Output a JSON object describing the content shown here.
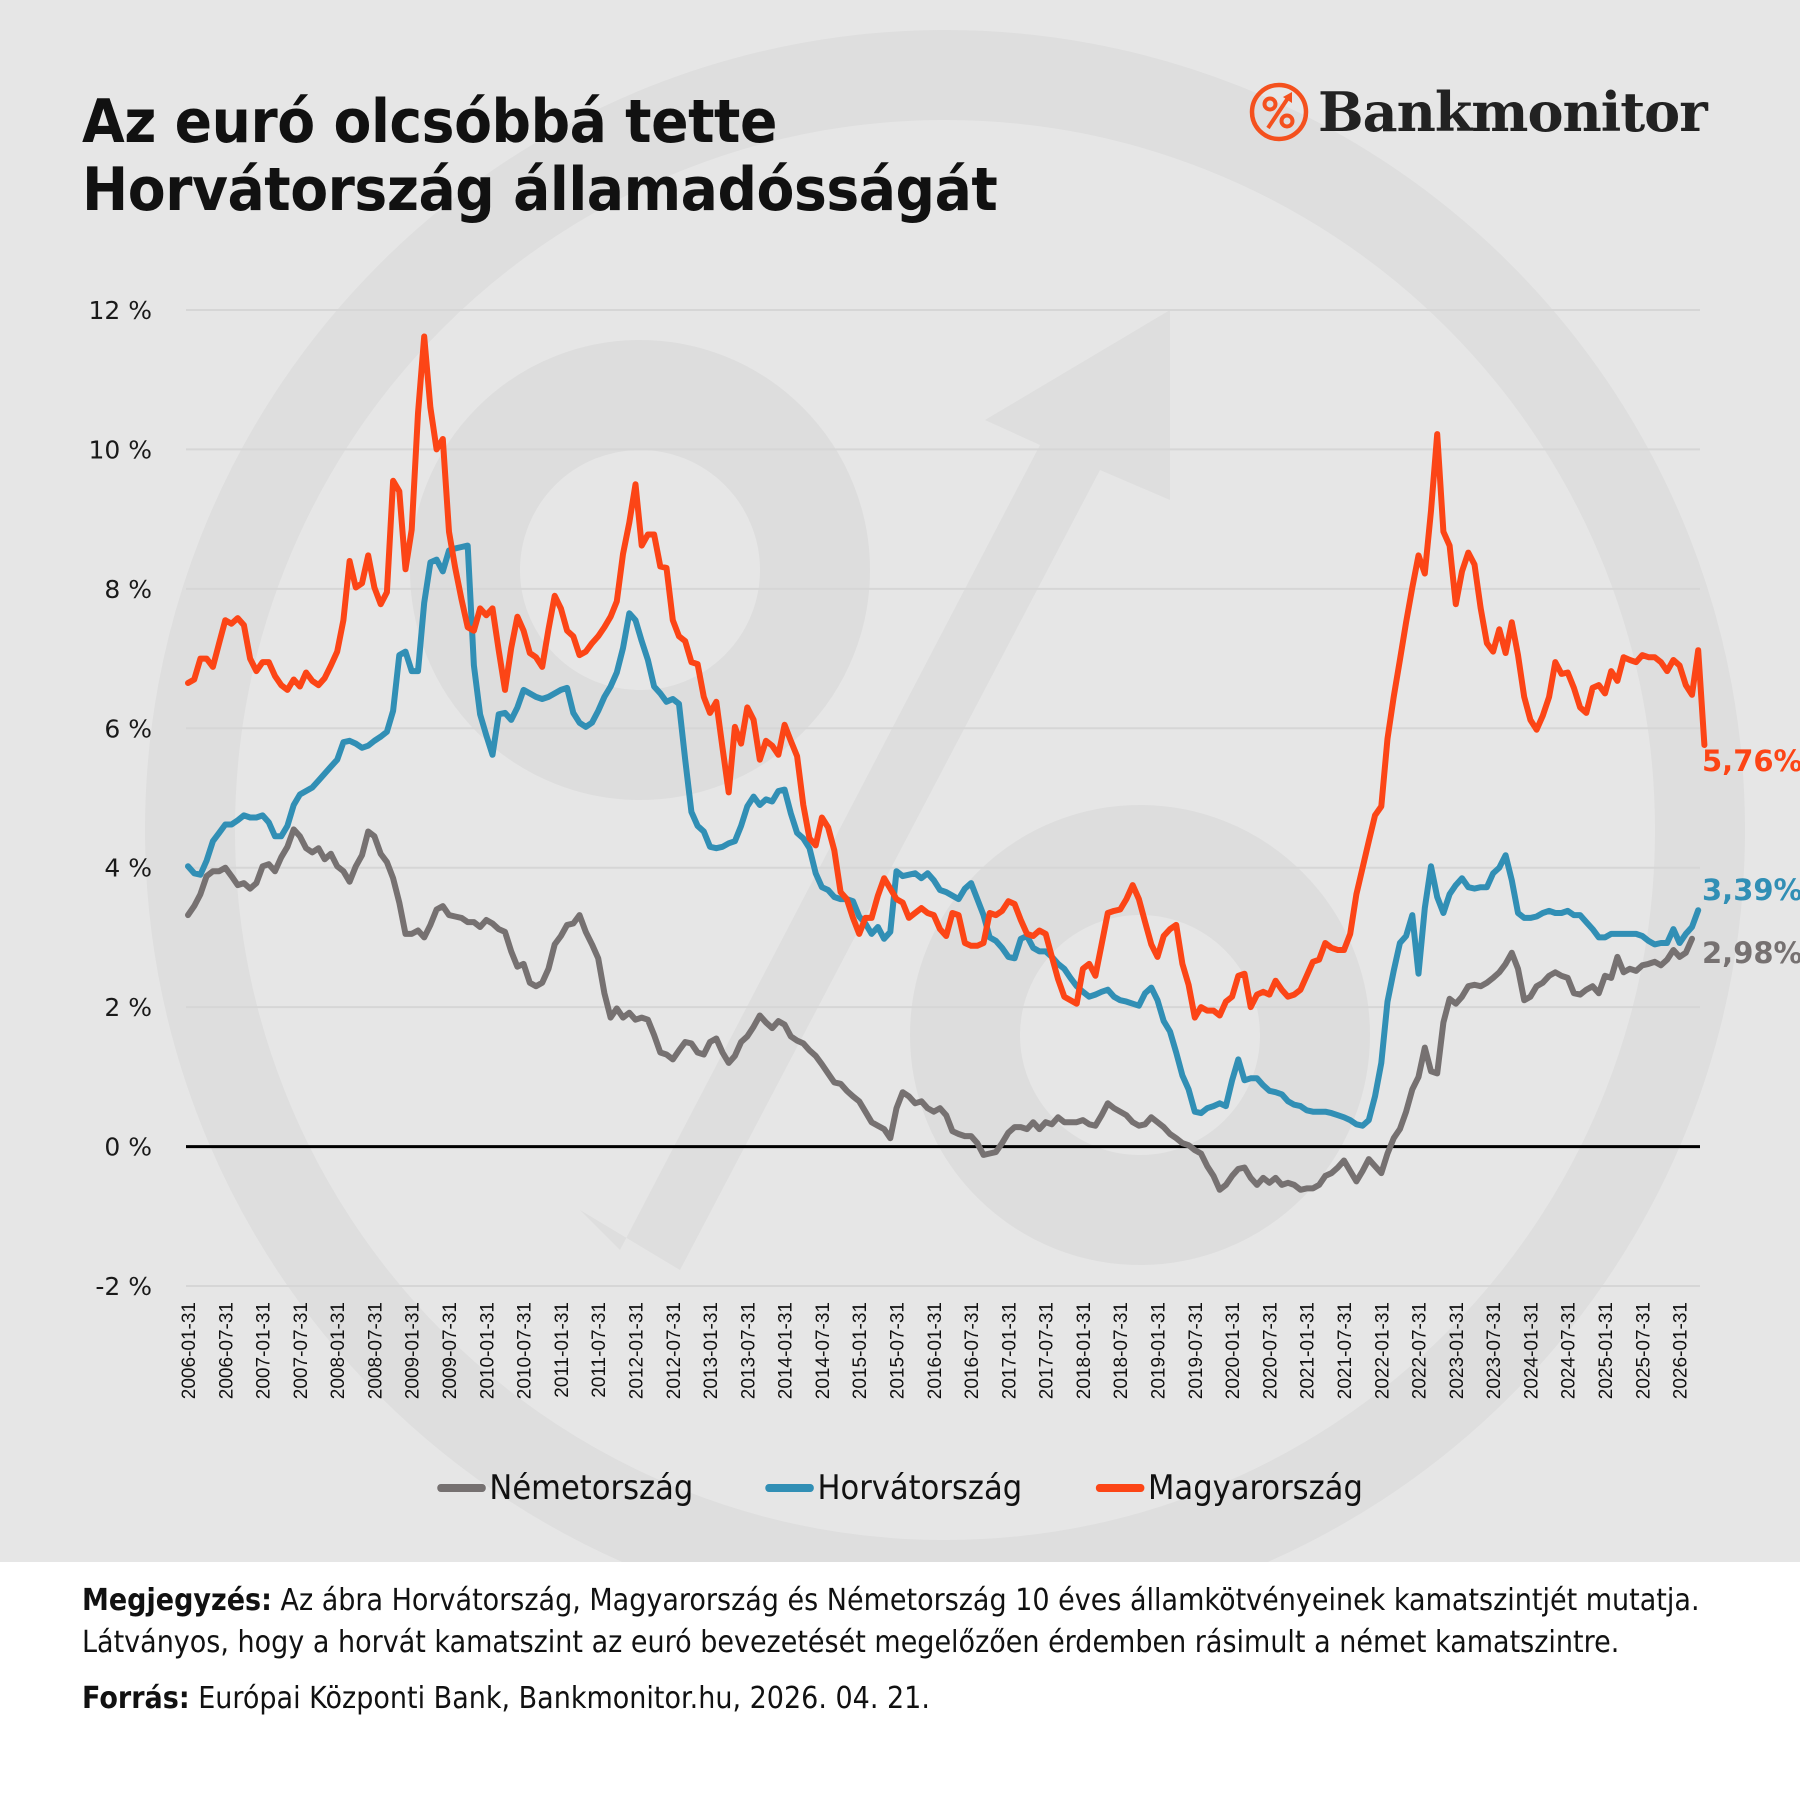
{
  "title": {
    "line1": "Az euró olcsóbbá tette",
    "line2": "Horvátország államadósságát"
  },
  "brand": {
    "name": "Bankmonitor",
    "icon": "percent-arrow-circle-icon",
    "color": "#f4511e"
  },
  "legend": [
    {
      "label": "Németország",
      "color": "#767171"
    },
    {
      "label": "Horvátország",
      "color": "#318fb5"
    },
    {
      "label": "Magyarország",
      "color": "#fc4516"
    }
  ],
  "notes": {
    "note_label": "Megjegyzés:",
    "note_text": "Az ábra Horvátország, Magyarország és Németország 10 éves államkötvényeinek kamatszintjét mutatja. Látványos, hogy a horvát kamatszint az euró bevezetését megelőzően érdemben rásimult a német kamatszintre.",
    "source_label": "Forrás:",
    "source_text": "Európai Központi Bank, Bankmonitor.hu, 2026. 04. 21."
  },
  "chart_data": {
    "type": "line",
    "title": "Az euró olcsóbbá tette Horvátország államadósságát",
    "xlabel": "",
    "ylabel": "",
    "frequency": "monthly",
    "x_start": "2006-01-31",
    "x_end": "2026-03-31",
    "ylim": [
      -2,
      12
    ],
    "yticks": [
      -2,
      0,
      2,
      4,
      6,
      8,
      10,
      12
    ],
    "ytick_labels": [
      "-2 %",
      "0 %",
      "2 %",
      "4 %",
      "6 %",
      "8 %",
      "10 %",
      "12 %"
    ],
    "xtick_labels": [
      "2006-01-31",
      "2006-07-31",
      "2007-01-31",
      "2007-07-31",
      "2008-01-31",
      "2008-07-31",
      "2009-01-31",
      "2009-07-31",
      "2010-01-31",
      "2010-07-31",
      "2011-01-31",
      "2011-07-31",
      "2012-01-31",
      "2012-07-31",
      "2013-01-31",
      "2013-07-31",
      "2014-01-31",
      "2014-07-31",
      "2015-01-31",
      "2015-07-31",
      "2016-01-31",
      "2016-07-31",
      "2017-01-31",
      "2017-07-31",
      "2018-01-31",
      "2018-07-31",
      "2019-01-31",
      "2019-07-31",
      "2020-01-31",
      "2020-07-31",
      "2021-01-31",
      "2021-07-31",
      "2022-01-31",
      "2022-07-31",
      "2023-01-31",
      "2023-07-31",
      "2024-01-31",
      "2024-07-31",
      "2025-01-31",
      "2025-07-31",
      "2026-01-31"
    ],
    "grid": true,
    "zero_line": true,
    "legend_position": "bottom",
    "series": [
      {
        "name": "Németország",
        "color": "#767171",
        "end_label": "2,98%",
        "values": [
          3.32,
          3.45,
          3.62,
          3.88,
          3.95,
          3.95,
          4.0,
          3.88,
          3.75,
          3.78,
          3.7,
          3.78,
          4.02,
          4.05,
          3.95,
          4.15,
          4.3,
          4.55,
          4.45,
          4.28,
          4.22,
          4.28,
          4.12,
          4.2,
          4.02,
          3.95,
          3.8,
          4.02,
          4.18,
          4.52,
          4.45,
          4.2,
          4.08,
          3.85,
          3.5,
          3.05,
          3.05,
          3.1,
          3.0,
          3.18,
          3.4,
          3.45,
          3.32,
          3.3,
          3.28,
          3.22,
          3.22,
          3.15,
          3.25,
          3.2,
          3.12,
          3.08,
          2.8,
          2.58,
          2.62,
          2.35,
          2.3,
          2.35,
          2.55,
          2.9,
          3.02,
          3.18,
          3.2,
          3.32,
          3.08,
          2.9,
          2.7,
          2.2,
          1.85,
          1.98,
          1.85,
          1.92,
          1.82,
          1.85,
          1.82,
          1.6,
          1.35,
          1.32,
          1.25,
          1.38,
          1.5,
          1.48,
          1.35,
          1.32,
          1.5,
          1.55,
          1.35,
          1.2,
          1.3,
          1.5,
          1.58,
          1.72,
          1.88,
          1.78,
          1.7,
          1.8,
          1.75,
          1.58,
          1.52,
          1.48,
          1.38,
          1.3,
          1.18,
          1.05,
          0.92,
          0.9,
          0.8,
          0.72,
          0.65,
          0.5,
          0.35,
          0.3,
          0.25,
          0.12,
          0.55,
          0.78,
          0.72,
          0.62,
          0.65,
          0.55,
          0.5,
          0.55,
          0.45,
          0.22,
          0.18,
          0.15,
          0.15,
          0.05,
          -0.12,
          -0.1,
          -0.08,
          0.05,
          0.2,
          0.28,
          0.28,
          0.25,
          0.35,
          0.25,
          0.35,
          0.32,
          0.42,
          0.35,
          0.35,
          0.35,
          0.38,
          0.32,
          0.3,
          0.45,
          0.62,
          0.55,
          0.5,
          0.45,
          0.35,
          0.3,
          0.32,
          0.42,
          0.35,
          0.28,
          0.18,
          0.12,
          0.05,
          0.02,
          -0.05,
          -0.1,
          -0.28,
          -0.42,
          -0.62,
          -0.55,
          -0.42,
          -0.32,
          -0.3,
          -0.45,
          -0.55,
          -0.45,
          -0.52,
          -0.45,
          -0.55,
          -0.52,
          -0.55,
          -0.62,
          -0.6,
          -0.6,
          -0.55,
          -0.42,
          -0.38,
          -0.3,
          -0.2,
          -0.35,
          -0.5,
          -0.35,
          -0.18,
          -0.28,
          -0.38,
          -0.1,
          0.12,
          0.25,
          0.5,
          0.82,
          1.0,
          1.42,
          1.08,
          1.05,
          1.78,
          2.12,
          2.05,
          2.15,
          2.3,
          2.32,
          2.3,
          2.35,
          2.42,
          2.5,
          2.62,
          2.78,
          2.55,
          2.1,
          2.15,
          2.3,
          2.35,
          2.45,
          2.5,
          2.45,
          2.42,
          2.2,
          2.18,
          2.25,
          2.3,
          2.2,
          2.45,
          2.42,
          2.72,
          2.5,
          2.55,
          2.52,
          2.6,
          2.62,
          2.65,
          2.6,
          2.68,
          2.82,
          2.72,
          2.78,
          2.98
        ]
      },
      {
        "name": "Horvátország",
        "color": "#318fb5",
        "end_label": "3,39%",
        "values": [
          4.02,
          3.92,
          3.9,
          4.1,
          4.38,
          4.5,
          4.62,
          4.62,
          4.68,
          4.75,
          4.72,
          4.72,
          4.75,
          4.65,
          4.45,
          4.45,
          4.6,
          4.9,
          5.05,
          5.1,
          5.15,
          5.25,
          5.35,
          5.45,
          5.55,
          5.8,
          5.82,
          5.78,
          5.72,
          5.75,
          5.82,
          5.88,
          5.95,
          6.25,
          7.05,
          7.1,
          6.82,
          6.82,
          7.8,
          8.38,
          8.42,
          8.25,
          8.55,
          8.58,
          8.6,
          8.62,
          6.9,
          6.2,
          5.9,
          5.62,
          6.2,
          6.22,
          6.12,
          6.3,
          6.55,
          6.5,
          6.45,
          6.42,
          6.45,
          6.5,
          6.55,
          6.58,
          6.22,
          6.08,
          6.02,
          6.08,
          6.25,
          6.45,
          6.6,
          6.8,
          7.15,
          7.65,
          7.55,
          7.25,
          6.98,
          6.6,
          6.5,
          6.38,
          6.42,
          6.35,
          5.55,
          4.8,
          4.6,
          4.52,
          4.3,
          4.28,
          4.3,
          4.35,
          4.38,
          4.6,
          4.88,
          5.02,
          4.9,
          4.98,
          4.95,
          5.1,
          5.12,
          4.78,
          4.5,
          4.42,
          4.28,
          3.92,
          3.72,
          3.68,
          3.58,
          3.55,
          3.55,
          3.52,
          3.3,
          3.2,
          3.05,
          3.15,
          2.98,
          3.08,
          3.95,
          3.88,
          3.9,
          3.92,
          3.85,
          3.92,
          3.82,
          3.68,
          3.65,
          3.6,
          3.55,
          3.7,
          3.78,
          3.55,
          3.32,
          3.0,
          2.95,
          2.85,
          2.72,
          2.7,
          2.98,
          3.02,
          2.85,
          2.8,
          2.8,
          2.72,
          2.62,
          2.55,
          2.42,
          2.3,
          2.22,
          2.15,
          2.18,
          2.22,
          2.25,
          2.15,
          2.1,
          2.08,
          2.05,
          2.02,
          2.2,
          2.28,
          2.1,
          1.8,
          1.65,
          1.35,
          1.02,
          0.82,
          0.5,
          0.48,
          0.55,
          0.58,
          0.62,
          0.58,
          0.95,
          1.25,
          0.95,
          0.98,
          0.98,
          0.88,
          0.8,
          0.78,
          0.75,
          0.65,
          0.6,
          0.58,
          0.52,
          0.5,
          0.5,
          0.5,
          0.48,
          0.45,
          0.42,
          0.38,
          0.32,
          0.3,
          0.38,
          0.72,
          1.2,
          2.08,
          2.52,
          2.92,
          3.02,
          3.32,
          2.48,
          3.42,
          4.02,
          3.58,
          3.35,
          3.62,
          3.75,
          3.85,
          3.72,
          3.7,
          3.72,
          3.72,
          3.92,
          4.0,
          4.18,
          3.82,
          3.35,
          3.28,
          3.28,
          3.3,
          3.35,
          3.38,
          3.35,
          3.35,
          3.38,
          3.32,
          3.32,
          3.22,
          3.12,
          3.0,
          3.0,
          3.05,
          3.05,
          3.05,
          3.05,
          3.05,
          3.02,
          2.95,
          2.9,
          2.92,
          2.92,
          3.12,
          2.92,
          3.05,
          3.15,
          3.39
        ]
      },
      {
        "name": "Magyarország",
        "color": "#fc4516",
        "end_label": "5,76%",
        "values": [
          6.65,
          6.7,
          7.0,
          7.0,
          6.88,
          7.22,
          7.55,
          7.5,
          7.58,
          7.48,
          7.0,
          6.82,
          6.95,
          6.95,
          6.75,
          6.62,
          6.55,
          6.7,
          6.6,
          6.8,
          6.68,
          6.62,
          6.72,
          6.9,
          7.1,
          7.55,
          8.4,
          8.02,
          8.08,
          8.48,
          8.02,
          7.78,
          7.95,
          9.55,
          9.4,
          8.28,
          8.85,
          10.52,
          11.62,
          10.6,
          10.0,
          10.15,
          8.82,
          8.3,
          7.85,
          7.45,
          7.4,
          7.72,
          7.62,
          7.72,
          7.12,
          6.55,
          7.15,
          7.6,
          7.4,
          7.08,
          7.02,
          6.88,
          7.42,
          7.9,
          7.72,
          7.4,
          7.32,
          7.05,
          7.1,
          7.22,
          7.32,
          7.45,
          7.6,
          7.82,
          8.5,
          8.95,
          9.5,
          8.62,
          8.78,
          8.78,
          8.32,
          8.3,
          7.55,
          7.32,
          7.25,
          6.95,
          6.92,
          6.45,
          6.22,
          6.38,
          5.72,
          5.08,
          6.02,
          5.78,
          6.3,
          6.12,
          5.55,
          5.82,
          5.75,
          5.62,
          6.05,
          5.82,
          5.6,
          4.9,
          4.42,
          4.32,
          4.72,
          4.58,
          4.25,
          3.65,
          3.55,
          3.28,
          3.05,
          3.28,
          3.28,
          3.6,
          3.85,
          3.7,
          3.55,
          3.5,
          3.28,
          3.35,
          3.42,
          3.35,
          3.32,
          3.12,
          3.02,
          3.35,
          3.32,
          2.92,
          2.88,
          2.88,
          2.92,
          3.35,
          3.32,
          3.38,
          3.52,
          3.48,
          3.25,
          3.05,
          3.02,
          3.1,
          3.05,
          2.72,
          2.4,
          2.15,
          2.1,
          2.05,
          2.55,
          2.62,
          2.45,
          2.9,
          3.35,
          3.38,
          3.4,
          3.55,
          3.75,
          3.55,
          3.22,
          2.9,
          2.72,
          3.02,
          3.12,
          3.18,
          2.62,
          2.32,
          1.85,
          2.0,
          1.95,
          1.95,
          1.88,
          2.08,
          2.15,
          2.45,
          2.48,
          2.0,
          2.18,
          2.22,
          2.18,
          2.38,
          2.25,
          2.15,
          2.18,
          2.25,
          2.45,
          2.65,
          2.68,
          2.92,
          2.85,
          2.82,
          2.82,
          3.05,
          3.62,
          4.0,
          4.38,
          4.75,
          4.88,
          5.85,
          6.45,
          6.98,
          7.52,
          8.02,
          8.48,
          8.22,
          9.12,
          10.22,
          8.82,
          8.62,
          7.78,
          8.25,
          8.52,
          8.35,
          7.72,
          7.22,
          7.1,
          7.42,
          7.08,
          7.52,
          7.05,
          6.45,
          6.12,
          5.98,
          6.18,
          6.45,
          6.95,
          6.78,
          6.8,
          6.58,
          6.3,
          6.22,
          6.58,
          6.62,
          6.5,
          6.82,
          6.68,
          7.02,
          6.98,
          6.95,
          7.05,
          7.02,
          7.02,
          6.95,
          6.82,
          6.98,
          6.9,
          6.62,
          6.48,
          7.12,
          5.76
        ]
      }
    ]
  }
}
